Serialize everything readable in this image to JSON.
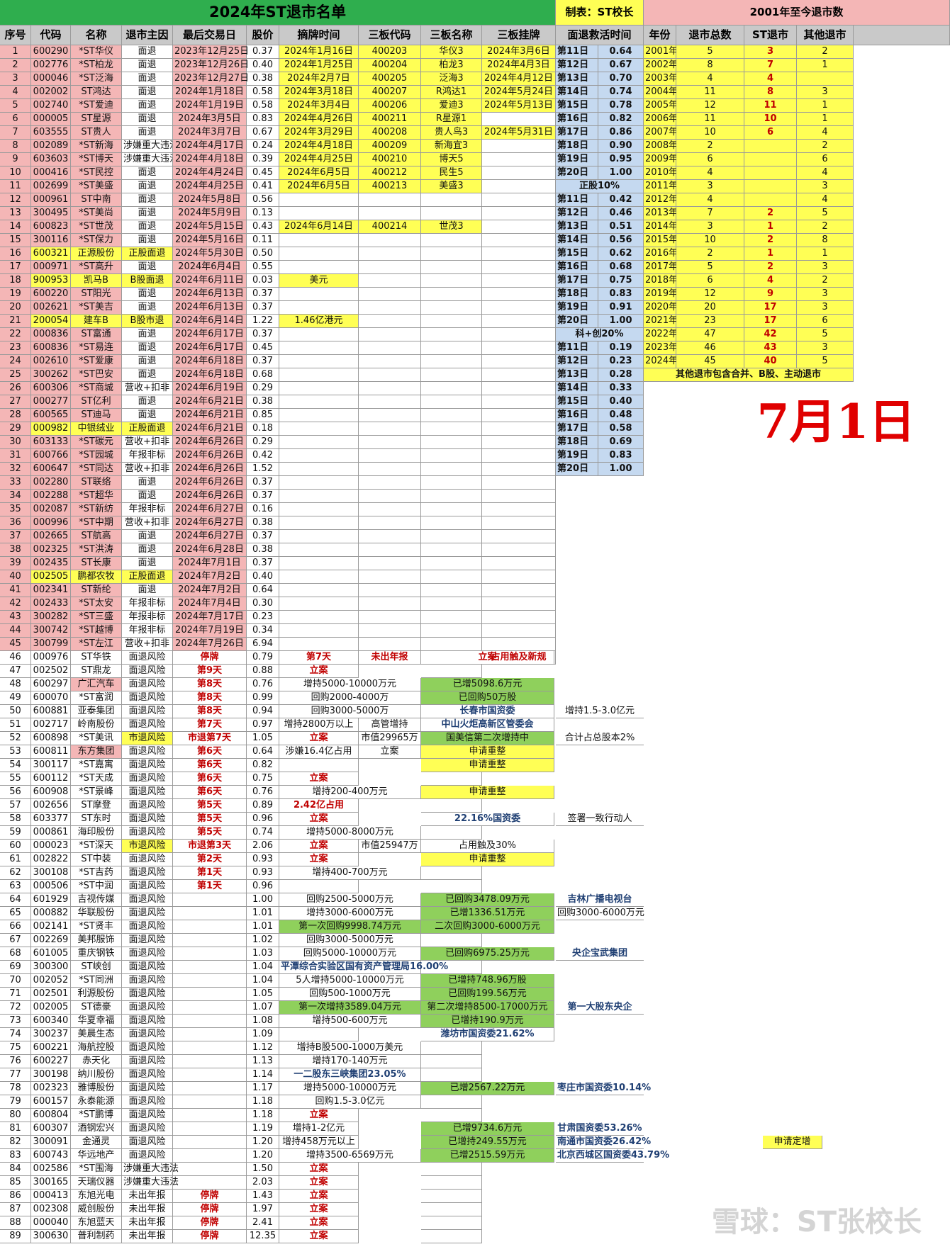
{
  "title": "2024年ST退市名单",
  "maker": "制表：ST校长",
  "stats_title": "2001年至今退市数",
  "headers": [
    "序号",
    "代码",
    "名称",
    "退市主因",
    "最后交易日",
    "股价",
    "摘牌时间",
    "三板代码",
    "三板名称",
    "三板挂牌"
  ],
  "rescue_header": "面退救活时间",
  "stats_headers": [
    "年份",
    "退市总数",
    "ST退市",
    "其他退市"
  ],
  "other_note": "其他退市包含合并、B股、主动退市",
  "date_big": "7月1日",
  "watermark": "雪球：ST张校长",
  "rescue_sections": [
    {
      "label": "",
      "rows": [
        [
          "第11日",
          "0.64"
        ],
        [
          "第12日",
          "0.67"
        ],
        [
          "第13日",
          "0.70"
        ],
        [
          "第14日",
          "0.74"
        ],
        [
          "第15日",
          "0.78"
        ],
        [
          "第16日",
          "0.82"
        ],
        [
          "第17日",
          "0.86"
        ],
        [
          "第18日",
          "0.90"
        ],
        [
          "第19日",
          "0.95"
        ],
        [
          "第20日",
          "1.00"
        ]
      ]
    },
    {
      "label": "正股10%",
      "rows": [
        [
          "第11日",
          "0.42"
        ],
        [
          "第12日",
          "0.46"
        ],
        [
          "第13日",
          "0.51"
        ],
        [
          "第14日",
          "0.56"
        ],
        [
          "第15日",
          "0.62"
        ],
        [
          "第16日",
          "0.68"
        ],
        [
          "第17日",
          "0.75"
        ],
        [
          "第18日",
          "0.83"
        ],
        [
          "第19日",
          "0.91"
        ],
        [
          "第20日",
          "1.00"
        ]
      ]
    },
    {
      "label": "科+创20%",
      "rows": [
        [
          "第11日",
          "0.19"
        ],
        [
          "第12日",
          "0.23"
        ],
        [
          "第13日",
          "0.28"
        ],
        [
          "第14日",
          "0.33"
        ],
        [
          "第15日",
          "0.40"
        ],
        [
          "第16日",
          "0.48"
        ],
        [
          "第17日",
          "0.58"
        ],
        [
          "第18日",
          "0.69"
        ],
        [
          "第19日",
          "0.83"
        ],
        [
          "第20日",
          "1.00"
        ]
      ]
    }
  ],
  "stats": [
    [
      "2001年",
      "5",
      "3",
      "2"
    ],
    [
      "2002年",
      "8",
      "7",
      "1"
    ],
    [
      "2003年",
      "4",
      "4",
      ""
    ],
    [
      "2004年",
      "11",
      "8",
      "3"
    ],
    [
      "2005年",
      "12",
      "11",
      "1"
    ],
    [
      "2006年",
      "11",
      "10",
      "1"
    ],
    [
      "2007年",
      "10",
      "6",
      "4"
    ],
    [
      "2008年",
      "2",
      "",
      "2"
    ],
    [
      "2009年",
      "6",
      "",
      "6"
    ],
    [
      "2010年",
      "4",
      "",
      "4"
    ],
    [
      "2011年",
      "3",
      "",
      "3"
    ],
    [
      "2012年",
      "4",
      "",
      "4"
    ],
    [
      "2013年",
      "7",
      "2",
      "5"
    ],
    [
      "2014年",
      "3",
      "1",
      "2"
    ],
    [
      "2015年",
      "10",
      "2",
      "8"
    ],
    [
      "2016年",
      "2",
      "1",
      "1"
    ],
    [
      "2017年",
      "5",
      "2",
      "3"
    ],
    [
      "2018年",
      "6",
      "4",
      "2"
    ],
    [
      "2019年",
      "12",
      "9",
      "3"
    ],
    [
      "2020年",
      "20",
      "17",
      "3"
    ],
    [
      "2021年",
      "23",
      "17",
      "6"
    ],
    [
      "2022年",
      "47",
      "42",
      "5"
    ],
    [
      "2023年",
      "46",
      "43",
      "3"
    ],
    [
      "2024年",
      "45",
      "40",
      "5"
    ]
  ],
  "rows": [
    [
      "1",
      "600290",
      "*ST华仪",
      "面退",
      "2023年12月25日",
      "0.37",
      "2024年1月16日",
      "400203",
      "华仪3",
      "2024年3月6日"
    ],
    [
      "2",
      "002776",
      "*ST柏龙",
      "面退",
      "2023年12月26日",
      "0.40",
      "2024年1月25日",
      "400204",
      "柏龙3",
      "2024年4月3日"
    ],
    [
      "3",
      "000046",
      "*ST泛海",
      "面退",
      "2023年12月27日",
      "0.38",
      "2024年2月7日",
      "400205",
      "泛海3",
      "2024年4月12日"
    ],
    [
      "4",
      "002002",
      "ST鸿达",
      "面退",
      "2024年1月18日",
      "0.58",
      "2024年3月18日",
      "400207",
      "R鸿达1",
      "2024年5月24日"
    ],
    [
      "5",
      "002740",
      "*ST爱迪",
      "面退",
      "2024年1月19日",
      "0.58",
      "2024年3月4日",
      "400206",
      "爱迪3",
      "2024年5月13日"
    ],
    [
      "6",
      "000005",
      "ST星源",
      "面退",
      "2024年3月5日",
      "0.83",
      "2024年4月26日",
      "400211",
      "R星源1",
      ""
    ],
    [
      "7",
      "603555",
      "ST贵人",
      "面退",
      "2024年3月7日",
      "0.67",
      "2024年3月29日",
      "400208",
      "贵人鸟3",
      "2024年5月31日"
    ],
    [
      "8",
      "002089",
      "*ST新海",
      "涉嫌重大违法",
      "2024年4月17日",
      "0.24",
      "2024年4月18日",
      "400209",
      "新海宜3",
      ""
    ],
    [
      "9",
      "603603",
      "*ST博天",
      "涉嫌重大违法",
      "2024年4月18日",
      "0.39",
      "2024年4月25日",
      "400210",
      "博天5",
      ""
    ],
    [
      "10",
      "000416",
      "*ST民控",
      "面退",
      "2024年4月24日",
      "0.45",
      "2024年6月5日",
      "400212",
      "民生5",
      ""
    ],
    [
      "11",
      "002699",
      "*ST美盛",
      "面退",
      "2024年4月25日",
      "0.41",
      "2024年6月5日",
      "400213",
      "美盛3",
      ""
    ],
    [
      "12",
      "000961",
      "ST中南",
      "面退",
      "2024年5月8日",
      "0.56",
      "",
      "",
      "",
      ""
    ],
    [
      "13",
      "300495",
      "*ST美尚",
      "面退",
      "2024年5月9日",
      "0.13",
      "",
      "",
      "",
      ""
    ],
    [
      "14",
      "600823",
      "*ST世茂",
      "面退",
      "2024年5月15日",
      "0.43",
      "2024年6月14日",
      "400214",
      "世茂3",
      ""
    ],
    [
      "15",
      "300116",
      "*ST保力",
      "面退",
      "2024年5月16日",
      "0.11",
      "",
      "",
      "",
      ""
    ],
    [
      "16",
      "600321",
      "正源股份",
      "正股面退",
      "2024年5月30日",
      "0.50",
      "",
      "",
      "",
      ""
    ],
    [
      "17",
      "000971",
      "*ST高升",
      "面退",
      "2024年6月4日",
      "0.55",
      "",
      "",
      "",
      ""
    ],
    [
      "18",
      "900953",
      "凯马B",
      "B股面退",
      "2024年6月11日",
      "0.03",
      "美元",
      "",
      "",
      ""
    ],
    [
      "19",
      "600220",
      "ST阳光",
      "面退",
      "2024年6月13日",
      "0.37",
      "",
      "",
      "",
      ""
    ],
    [
      "20",
      "002621",
      "*ST美吉",
      "面退",
      "2024年6月13日",
      "0.37",
      "",
      "",
      "",
      ""
    ],
    [
      "21",
      "200054",
      "建车B",
      "B股市退",
      "2024年6月14日",
      "1.22",
      "1.46亿港元",
      "",
      "",
      ""
    ],
    [
      "22",
      "000836",
      "ST富通",
      "面退",
      "2024年6月17日",
      "0.37",
      "",
      "",
      "",
      ""
    ],
    [
      "23",
      "600836",
      "*ST易连",
      "面退",
      "2024年6月17日",
      "0.45",
      "",
      "",
      "",
      ""
    ],
    [
      "24",
      "002610",
      "*ST爱康",
      "面退",
      "2024年6月18日",
      "0.37",
      "",
      "",
      "",
      ""
    ],
    [
      "25",
      "300262",
      "*ST巴安",
      "面退",
      "2024年6月18日",
      "0.68",
      "",
      "",
      "",
      ""
    ],
    [
      "26",
      "600306",
      "*ST商城",
      "营收+扣非",
      "2024年6月19日",
      "0.29",
      "",
      "",
      "",
      ""
    ],
    [
      "27",
      "000277",
      "ST亿利",
      "面退",
      "2024年6月21日",
      "0.38",
      "",
      "",
      "",
      ""
    ],
    [
      "28",
      "600565",
      "ST迪马",
      "面退",
      "2024年6月21日",
      "0.85",
      "",
      "",
      "",
      ""
    ],
    [
      "29",
      "000982",
      "中银绒业",
      "正股面退",
      "2024年6月21日",
      "0.18",
      "",
      "",
      "",
      ""
    ],
    [
      "30",
      "603133",
      "*ST碳元",
      "营收+扣非",
      "2024年6月26日",
      "0.29",
      "",
      "",
      "",
      ""
    ],
    [
      "31",
      "600766",
      "*ST园城",
      "年报非标",
      "2024年6月26日",
      "0.42",
      "",
      "",
      "",
      ""
    ],
    [
      "32",
      "600647",
      "*ST同达",
      "营收+扣非",
      "2024年6月26日",
      "1.52",
      "",
      "",
      "",
      ""
    ],
    [
      "33",
      "002280",
      "ST联络",
      "面退",
      "2024年6月26日",
      "0.37",
      "",
      "",
      "",
      ""
    ],
    [
      "34",
      "002288",
      "*ST超华",
      "面退",
      "2024年6月26日",
      "0.37",
      "",
      "",
      "",
      ""
    ],
    [
      "35",
      "002087",
      "*ST新纺",
      "年报非标",
      "2024年6月27日",
      "0.16",
      "",
      "",
      "",
      ""
    ],
    [
      "36",
      "000996",
      "*ST中期",
      "营收+扣非",
      "2024年6月27日",
      "0.38",
      "",
      "",
      "",
      ""
    ],
    [
      "37",
      "002665",
      "ST航高",
      "面退",
      "2024年6月27日",
      "0.37",
      "",
      "",
      "",
      ""
    ],
    [
      "38",
      "002325",
      "*ST洪涛",
      "面退",
      "2024年6月28日",
      "0.38",
      "",
      "",
      "",
      ""
    ],
    [
      "39",
      "002435",
      "ST长康",
      "面退",
      "2024年7月1日",
      "0.37",
      "",
      "",
      "",
      ""
    ],
    [
      "40",
      "002505",
      "鹏都农牧",
      "正股面退",
      "2024年7月2日",
      "0.40",
      "",
      "",
      "",
      ""
    ],
    [
      "41",
      "002341",
      "ST新纶",
      "面退",
      "2024年7月2日",
      "0.64",
      "",
      "",
      "",
      ""
    ],
    [
      "42",
      "002433",
      "*ST太安",
      "年报非标",
      "2024年7月4日",
      "0.30",
      "",
      "",
      "",
      ""
    ],
    [
      "43",
      "300282",
      "*ST三盛",
      "年报非标",
      "2024年7月17日",
      "0.23",
      "",
      "",
      "",
      ""
    ],
    [
      "44",
      "300742",
      "*ST越博",
      "年报非标",
      "2024年7月19日",
      "0.34",
      "",
      "",
      "",
      ""
    ],
    [
      "45",
      "300799",
      "*ST左江",
      "营收+扣非",
      "2024年7月26日",
      "6.94",
      "",
      "",
      "",
      ""
    ],
    [
      "46",
      "000976",
      "ST华铁",
      "面退风险",
      "停牌",
      "0.79",
      "第7天",
      "未出年报",
      "立案",
      "占用触及新规"
    ],
    [
      "47",
      "002502",
      "ST鼎龙",
      "面退风险",
      "第9天",
      "0.88",
      "立案",
      "",
      "",
      ""
    ],
    [
      "48",
      "600297",
      "广汇汽车",
      "面退风险",
      "第8天",
      "0.76",
      "增持5000-10000万元",
      "",
      "已增5098.6万元",
      ""
    ],
    [
      "49",
      "600070",
      "*ST富润",
      "面退风险",
      "第8天",
      "0.99",
      "回购2000-4000万",
      "",
      "已回购50万股",
      ""
    ],
    [
      "50",
      "600881",
      "亚泰集团",
      "面退风险",
      "第8天",
      "0.94",
      "回购3000-5000万",
      "",
      "长春市国资委",
      ""
    ],
    [
      "51",
      "002717",
      "岭南股份",
      "面退风险",
      "第7天",
      "0.97",
      "增持2800万以上",
      "高管增持",
      "中山火炬高新区管委会",
      ""
    ],
    [
      "52",
      "600898",
      "*ST美讯",
      "市退风险",
      "市退第7天",
      "1.05",
      "立案",
      "市值29965万",
      "国美信第二次增持中",
      ""
    ],
    [
      "53",
      "600811",
      "东方集团",
      "面退风险",
      "第6天",
      "0.64",
      "涉嫌16.4亿占用",
      "立案",
      "申请重整",
      ""
    ],
    [
      "54",
      "300117",
      "*ST嘉寓",
      "面退风险",
      "第6天",
      "0.82",
      "",
      "",
      "申请重整",
      ""
    ],
    [
      "55",
      "600112",
      "*ST天成",
      "面退风险",
      "第6天",
      "0.75",
      "立案",
      "",
      "",
      ""
    ],
    [
      "56",
      "600908",
      "*ST景峰",
      "面退风险",
      "第6天",
      "0.76",
      "增持200-400万元",
      "",
      "申请重整",
      ""
    ],
    [
      "57",
      "002656",
      "ST摩登",
      "面退风险",
      "第5天",
      "0.89",
      "2.42亿占用",
      "",
      "",
      ""
    ],
    [
      "58",
      "603377",
      "ST东时",
      "面退风险",
      "第5天",
      "0.96",
      "立案",
      "",
      "22.16%国资委",
      ""
    ],
    [
      "59",
      "000861",
      "海印股份",
      "面退风险",
      "第5天",
      "0.74",
      "增持5000-8000万元",
      "",
      "",
      ""
    ],
    [
      "60",
      "000023",
      "*ST深天",
      "市退风险",
      "市退第3天",
      "2.06",
      "立案",
      "市值25947万",
      "占用触及30%",
      ""
    ],
    [
      "61",
      "002822",
      "ST中装",
      "面退风险",
      "第2天",
      "0.93",
      "立案",
      "",
      "申请重整",
      ""
    ],
    [
      "62",
      "300108",
      "*ST吉药",
      "面退风险",
      "第1天",
      "0.93",
      "增持400-700万元",
      "",
      "",
      ""
    ],
    [
      "63",
      "000506",
      "*ST中润",
      "面退风险",
      "第1天",
      "0.96",
      "",
      "",
      "",
      ""
    ],
    [
      "64",
      "601929",
      "吉视传媒",
      "面退风险",
      "",
      "1.00",
      "回购2500-5000万元",
      "",
      "已回购3478.09万元",
      ""
    ],
    [
      "65",
      "000882",
      "华联股份",
      "面退风险",
      "",
      "1.01",
      "增持3000-6000万元",
      "",
      "已增1336.51万元",
      ""
    ],
    [
      "66",
      "002141",
      "*ST贤丰",
      "面退风险",
      "",
      "1.01",
      "第一次回购9998.74万元",
      "",
      "二次回购3000-6000万元",
      ""
    ],
    [
      "67",
      "002269",
      "美邦服饰",
      "面退风险",
      "",
      "1.02",
      "回购3000-5000万元",
      "",
      "",
      ""
    ],
    [
      "68",
      "601005",
      "重庆钢铁",
      "面退风险",
      "",
      "1.03",
      "回购5000-10000万元",
      "",
      "已回购6975.25万元",
      ""
    ],
    [
      "69",
      "300300",
      "ST峡创",
      "面退风险",
      "",
      "1.04",
      "平潭综合实验区国有资产管理局16.00%",
      "",
      "",
      ""
    ],
    [
      "70",
      "002052",
      "*ST同洲",
      "面退风险",
      "",
      "1.04",
      "5人增持5000-10000万元",
      "",
      "已增持748.96万股",
      ""
    ],
    [
      "71",
      "002501",
      "利源股份",
      "面退风险",
      "",
      "1.05",
      "回购500-1000万元",
      "",
      "已回购199.56万元",
      ""
    ],
    [
      "72",
      "002005",
      "ST德豪",
      "面退风险",
      "",
      "1.07",
      "第一次增持3589.04万元",
      "",
      "第二次增持8500-17000万元",
      ""
    ],
    [
      "73",
      "600340",
      "华夏幸福",
      "面退风险",
      "",
      "1.08",
      "增持500-600万元",
      "",
      "已增持190.9万元",
      ""
    ],
    [
      "74",
      "300237",
      "美晨生态",
      "面退风险",
      "",
      "1.09",
      "",
      "",
      "潍坊市国资委21.62%",
      ""
    ],
    [
      "75",
      "600221",
      "海航控股",
      "面退风险",
      "",
      "1.12",
      "增持B股500-1000万美元",
      "",
      "",
      ""
    ],
    [
      "76",
      "600227",
      "赤天化",
      "面退风险",
      "",
      "1.13",
      "增持170-140万元",
      "",
      "",
      ""
    ],
    [
      "77",
      "300198",
      "纳川股份",
      "面退风险",
      "",
      "1.14",
      "一二股东三峡集团23.05%",
      "",
      "",
      ""
    ],
    [
      "78",
      "002323",
      "雅博股份",
      "面退风险",
      "",
      "1.17",
      "增持5000-10000万元",
      "",
      "已增2567.22万元",
      ""
    ],
    [
      "79",
      "600157",
      "永泰能源",
      "面退风险",
      "",
      "1.18",
      "回购1.5-3.0亿元",
      "",
      "",
      ""
    ],
    [
      "80",
      "600804",
      "*ST鹏博",
      "面退风险",
      "",
      "1.18",
      "立案",
      "",
      "",
      ""
    ],
    [
      "81",
      "600307",
      "酒钢宏兴",
      "面退风险",
      "",
      "1.19",
      "增持1-2亿元",
      "",
      "已增9734.6万元",
      ""
    ],
    [
      "82",
      "300091",
      "金通灵",
      "面退风险",
      "",
      "1.20",
      "增持458万元以上",
      "",
      "已增持249.55万元",
      ""
    ],
    [
      "83",
      "600743",
      "华远地产",
      "面退风险",
      "",
      "1.20",
      "增持3500-6569万元",
      "",
      "已增2515.59万元",
      ""
    ],
    [
      "84",
      "002586",
      "*ST围海",
      "涉嫌重大违法",
      "",
      "1.50",
      "立案",
      "",
      "",
      ""
    ],
    [
      "85",
      "300165",
      "天瑞仪器",
      "涉嫌重大违法",
      "",
      "2.03",
      "立案",
      "",
      "",
      ""
    ],
    [
      "86",
      "000413",
      "东旭光电",
      "未出年报",
      "停牌",
      "1.43",
      "立案",
      "",
      "",
      ""
    ],
    [
      "87",
      "002308",
      "威创股份",
      "未出年报",
      "停牌",
      "1.97",
      "立案",
      "",
      "",
      ""
    ],
    [
      "88",
      "000040",
      "东旭蓝天",
      "未出年报",
      "停牌",
      "2.41",
      "立案",
      "",
      "",
      ""
    ],
    [
      "89",
      "300630",
      "普利制药",
      "未出年报",
      "停牌",
      "12.35",
      "立案",
      "",
      "",
      ""
    ]
  ],
  "side_notes": {
    "50": "增持1.5-3.0亿元",
    "52": "合计占总股本2%",
    "58": "签署一致行动人",
    "64": "吉林广播电视台",
    "65": "回购3000-6000万元",
    "68": "央企宝武集团",
    "72": "第一大股东央企",
    "78": "枣庄市国资委10.14%",
    "81": "甘肃国资委53.26%",
    "82": "南通市国资委26.42%",
    "83": "北京西城区国资委43.79%"
  },
  "extra_note_82": "申请定增",
  "colors": {
    "title_bg": "#2fae4e",
    "pink": "#f4b6b6",
    "yellow": "#ffff55",
    "green": "#8fd05c",
    "lightblue": "#c5d9f0",
    "red": "#c00000",
    "navy": "#1f3f73"
  }
}
